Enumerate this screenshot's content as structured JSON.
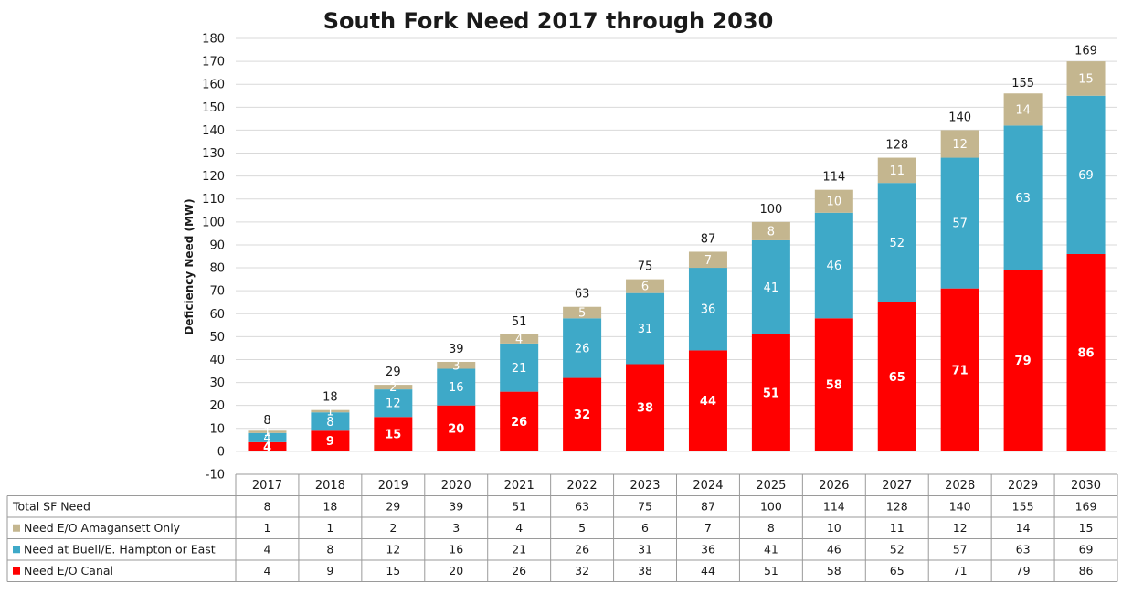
{
  "chart_data": {
    "type": "bar",
    "stacked": true,
    "title": "South Fork Need 2017 through 2030",
    "ylabel": "Deficiency Need (MW)",
    "xlabel": "",
    "ylim": [
      -10,
      180
    ],
    "yticks": [
      -10,
      0,
      10,
      20,
      30,
      40,
      50,
      60,
      70,
      80,
      90,
      100,
      110,
      120,
      130,
      140,
      150,
      160,
      170,
      180
    ],
    "grid": true,
    "legend": "data table below chart",
    "categories": [
      "2017",
      "2018",
      "2019",
      "2020",
      "2021",
      "2022",
      "2023",
      "2024",
      "2025",
      "2026",
      "2027",
      "2028",
      "2029",
      "2030"
    ],
    "totals_label": "Total SF Need",
    "totals": [
      8,
      18,
      29,
      39,
      51,
      63,
      75,
      87,
      100,
      114,
      128,
      140,
      155,
      169
    ],
    "series": [
      {
        "name": "Need E/O Canal",
        "color": "#ff0000",
        "values": [
          4,
          9,
          15,
          20,
          26,
          32,
          38,
          44,
          51,
          58,
          65,
          71,
          79,
          86
        ]
      },
      {
        "name": "Need at Buell/E. Hampton or East",
        "color": "#3ea9c8",
        "values": [
          4,
          8,
          12,
          16,
          21,
          26,
          31,
          36,
          41,
          46,
          52,
          57,
          63,
          69
        ]
      },
      {
        "name": "Need E/O Amagansett Only",
        "color": "#c4b68f",
        "values": [
          1,
          1,
          2,
          3,
          4,
          5,
          6,
          7,
          8,
          10,
          11,
          12,
          14,
          15
        ]
      }
    ]
  }
}
